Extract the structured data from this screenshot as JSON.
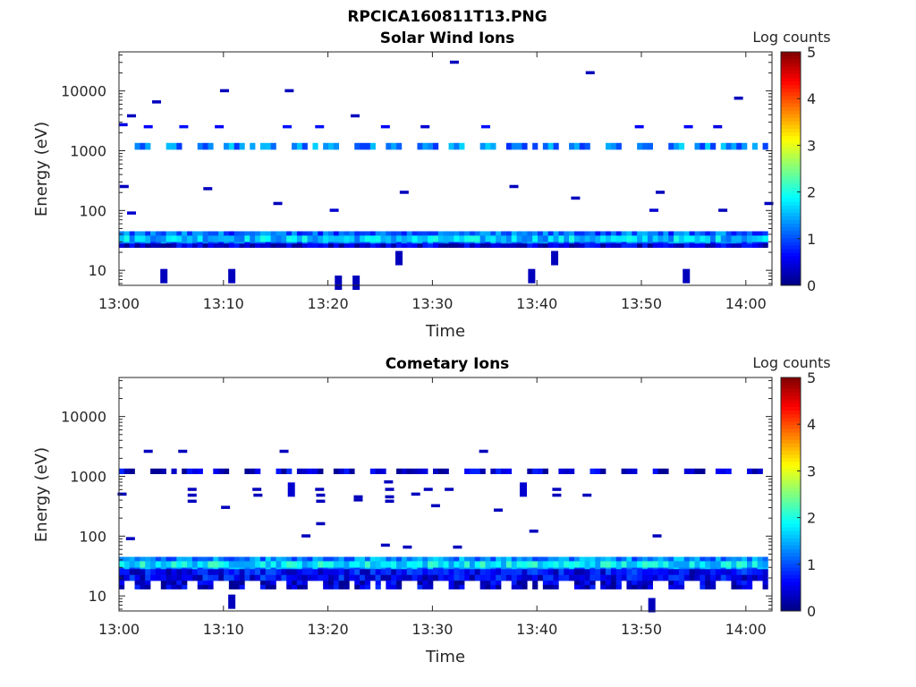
{
  "figure": {
    "title": "RPCICA160811T13.PNG"
  },
  "colorbar": {
    "label": "Log counts",
    "ticks": [
      "0",
      "1",
      "2",
      "3",
      "4",
      "5"
    ],
    "range": [
      0,
      5
    ],
    "colormap": "jet"
  },
  "axes_common": {
    "xlabel": "Time",
    "ylabel": "Energy (eV)",
    "x_ticks": [
      "13:00",
      "13:10",
      "13:20",
      "13:30",
      "13:40",
      "13:50",
      "14:00"
    ],
    "y_ticks": [
      "10",
      "100",
      "1000",
      "10000"
    ],
    "x_range_minutes": [
      0,
      62.5
    ],
    "y_range_ev": [
      5.6,
      45000
    ],
    "y_scale": "log"
  },
  "chart_data": [
    {
      "type": "heatmap",
      "title": "Solar Wind Ions",
      "xlabel": "Time",
      "ylabel": "Energy (eV)",
      "value_label": "Log counts",
      "bands": [
        {
          "e_low": 27,
          "e_high": 45,
          "t_start": 0,
          "t_end": 62.5,
          "value": 1.1
        },
        {
          "e_low": 30,
          "e_high": 38,
          "t_start": 0,
          "t_end": 62.5,
          "value": 1.6
        },
        {
          "e_low": 24,
          "e_high": 28,
          "t_start": 0,
          "t_end": 62.5,
          "value": 0.4
        },
        {
          "e_low": 1050,
          "e_high": 1350,
          "t_start": 0,
          "t_end": 62.5,
          "value": 1.3,
          "pattern": "intermittent"
        }
      ],
      "patches": [
        {
          "t": 4.3,
          "e": 8,
          "value": 0.3
        },
        {
          "t": 10.8,
          "e": 8,
          "value": 0.3
        },
        {
          "t": 21,
          "e": 6.2,
          "value": 0.3
        },
        {
          "t": 22.7,
          "e": 6.2,
          "value": 0.3
        },
        {
          "t": 26.8,
          "e": 16,
          "value": 0.3
        },
        {
          "t": 39.5,
          "e": 8,
          "value": 0.3
        },
        {
          "t": 41.7,
          "e": 16,
          "value": 0.3
        },
        {
          "t": 54.3,
          "e": 8,
          "value": 0.3
        }
      ],
      "sparse_points": [
        {
          "t": 0.4,
          "e": 2700,
          "v": 0.5
        },
        {
          "t": 1.2,
          "e": 3800,
          "v": 0.3
        },
        {
          "t": 2.8,
          "e": 2500,
          "v": 0.6
        },
        {
          "t": 3.6,
          "e": 6500,
          "v": 0.3
        },
        {
          "t": 6.2,
          "e": 2500,
          "v": 0.7
        },
        {
          "t": 9.6,
          "e": 2500,
          "v": 0.6
        },
        {
          "t": 10.1,
          "e": 10000,
          "v": 0.3
        },
        {
          "t": 16.1,
          "e": 2500,
          "v": 0.7
        },
        {
          "t": 16.3,
          "e": 10000,
          "v": 0.3
        },
        {
          "t": 19.2,
          "e": 2500,
          "v": 0.7
        },
        {
          "t": 22.6,
          "e": 3800,
          "v": 0.3
        },
        {
          "t": 25.5,
          "e": 2500,
          "v": 0.6
        },
        {
          "t": 29.3,
          "e": 2500,
          "v": 0.4
        },
        {
          "t": 32.1,
          "e": 30000,
          "v": 0.3
        },
        {
          "t": 35.1,
          "e": 2500,
          "v": 0.7
        },
        {
          "t": 45.1,
          "e": 20000,
          "v": 0.3
        },
        {
          "t": 49.8,
          "e": 2500,
          "v": 0.6
        },
        {
          "t": 54.5,
          "e": 2500,
          "v": 0.6
        },
        {
          "t": 57.3,
          "e": 2500,
          "v": 0.5
        },
        {
          "t": 59.3,
          "e": 7500,
          "v": 0.3
        },
        {
          "t": 62.2,
          "e": 130,
          "v": 0.3
        },
        {
          "t": 0.5,
          "e": 250,
          "v": 0.3
        },
        {
          "t": 1.2,
          "e": 90,
          "v": 0.4
        },
        {
          "t": 8.5,
          "e": 230,
          "v": 0.3
        },
        {
          "t": 15.2,
          "e": 130,
          "v": 0.3
        },
        {
          "t": 20.6,
          "e": 100,
          "v": 0.4
        },
        {
          "t": 27.3,
          "e": 200,
          "v": 0.3
        },
        {
          "t": 37.8,
          "e": 250,
          "v": 0.3
        },
        {
          "t": 43.7,
          "e": 160,
          "v": 0.3
        },
        {
          "t": 51.8,
          "e": 200,
          "v": 0.3
        },
        {
          "t": 57.8,
          "e": 100,
          "v": 0.3
        },
        {
          "t": 51.2,
          "e": 100,
          "v": 0.4
        }
      ]
    },
    {
      "type": "heatmap",
      "title": "Cometary Ions",
      "xlabel": "Time",
      "ylabel": "Energy (eV)",
      "value_label": "Log counts",
      "bands": [
        {
          "e_low": 27,
          "e_high": 45,
          "t_start": 0,
          "t_end": 62.5,
          "value": 1.3
        },
        {
          "e_low": 30,
          "e_high": 38,
          "t_start": 0,
          "t_end": 62.5,
          "value": 1.8
        },
        {
          "e_low": 18,
          "e_high": 28,
          "t_start": 0,
          "t_end": 62.5,
          "value": 0.6
        },
        {
          "e_low": 13,
          "e_high": 18,
          "t_start": 0,
          "t_end": 62.5,
          "value": 0.4,
          "pattern": "intermittent"
        },
        {
          "e_low": 1100,
          "e_high": 1350,
          "t_start": 0,
          "t_end": 62.5,
          "value": 0.4,
          "pattern": "intermittent"
        }
      ],
      "patches": [
        {
          "t": 10.8,
          "e": 8,
          "value": 0.3
        },
        {
          "t": 16.5,
          "e": 600,
          "value": 0.4
        },
        {
          "t": 38.7,
          "e": 600,
          "value": 0.4
        },
        {
          "t": 51.0,
          "e": 7,
          "value": 0.3
        }
      ],
      "sparse_points": [
        {
          "t": 2.8,
          "e": 2600,
          "v": 0.3
        },
        {
          "t": 6.1,
          "e": 2600,
          "v": 0.3
        },
        {
          "t": 15.8,
          "e": 2600,
          "v": 0.3
        },
        {
          "t": 34.9,
          "e": 2600,
          "v": 0.3
        },
        {
          "t": 0.3,
          "e": 500,
          "v": 0.3
        },
        {
          "t": 1.1,
          "e": 90,
          "v": 0.3
        },
        {
          "t": 7.0,
          "e": 600,
          "v": 0.3
        },
        {
          "t": 7.0,
          "e": 480,
          "v": 0.3
        },
        {
          "t": 7.0,
          "e": 380,
          "v": 0.3
        },
        {
          "t": 10.2,
          "e": 300,
          "v": 0.3
        },
        {
          "t": 13.2,
          "e": 600,
          "v": 0.3
        },
        {
          "t": 13.3,
          "e": 480,
          "v": 0.3
        },
        {
          "t": 19.2,
          "e": 600,
          "v": 0.3
        },
        {
          "t": 19.3,
          "e": 480,
          "v": 0.3
        },
        {
          "t": 19.3,
          "e": 380,
          "v": 0.3
        },
        {
          "t": 22.9,
          "e": 450,
          "v": 0.3
        },
        {
          "t": 22.9,
          "e": 400,
          "v": 0.3
        },
        {
          "t": 25.8,
          "e": 800,
          "v": 0.3
        },
        {
          "t": 25.9,
          "e": 600,
          "v": 0.3
        },
        {
          "t": 25.9,
          "e": 450,
          "v": 0.3
        },
        {
          "t": 25.9,
          "e": 380,
          "v": 0.3
        },
        {
          "t": 28.4,
          "e": 500,
          "v": 0.3
        },
        {
          "t": 29.6,
          "e": 600,
          "v": 0.3
        },
        {
          "t": 31.6,
          "e": 600,
          "v": 0.3
        },
        {
          "t": 19.3,
          "e": 160,
          "v": 0.3
        },
        {
          "t": 17.9,
          "e": 100,
          "v": 0.3
        },
        {
          "t": 25.5,
          "e": 70,
          "v": 0.3
        },
        {
          "t": 27.6,
          "e": 65,
          "v": 0.3
        },
        {
          "t": 32.4,
          "e": 65,
          "v": 0.3
        },
        {
          "t": 39.7,
          "e": 120,
          "v": 0.3
        },
        {
          "t": 41.9,
          "e": 600,
          "v": 0.3
        },
        {
          "t": 41.9,
          "e": 480,
          "v": 0.3
        },
        {
          "t": 44.8,
          "e": 480,
          "v": 0.3
        },
        {
          "t": 51.5,
          "e": 100,
          "v": 0.3
        },
        {
          "t": 36.3,
          "e": 270,
          "v": 0.3
        },
        {
          "t": 30.3,
          "e": 320,
          "v": 0.3
        }
      ]
    }
  ]
}
